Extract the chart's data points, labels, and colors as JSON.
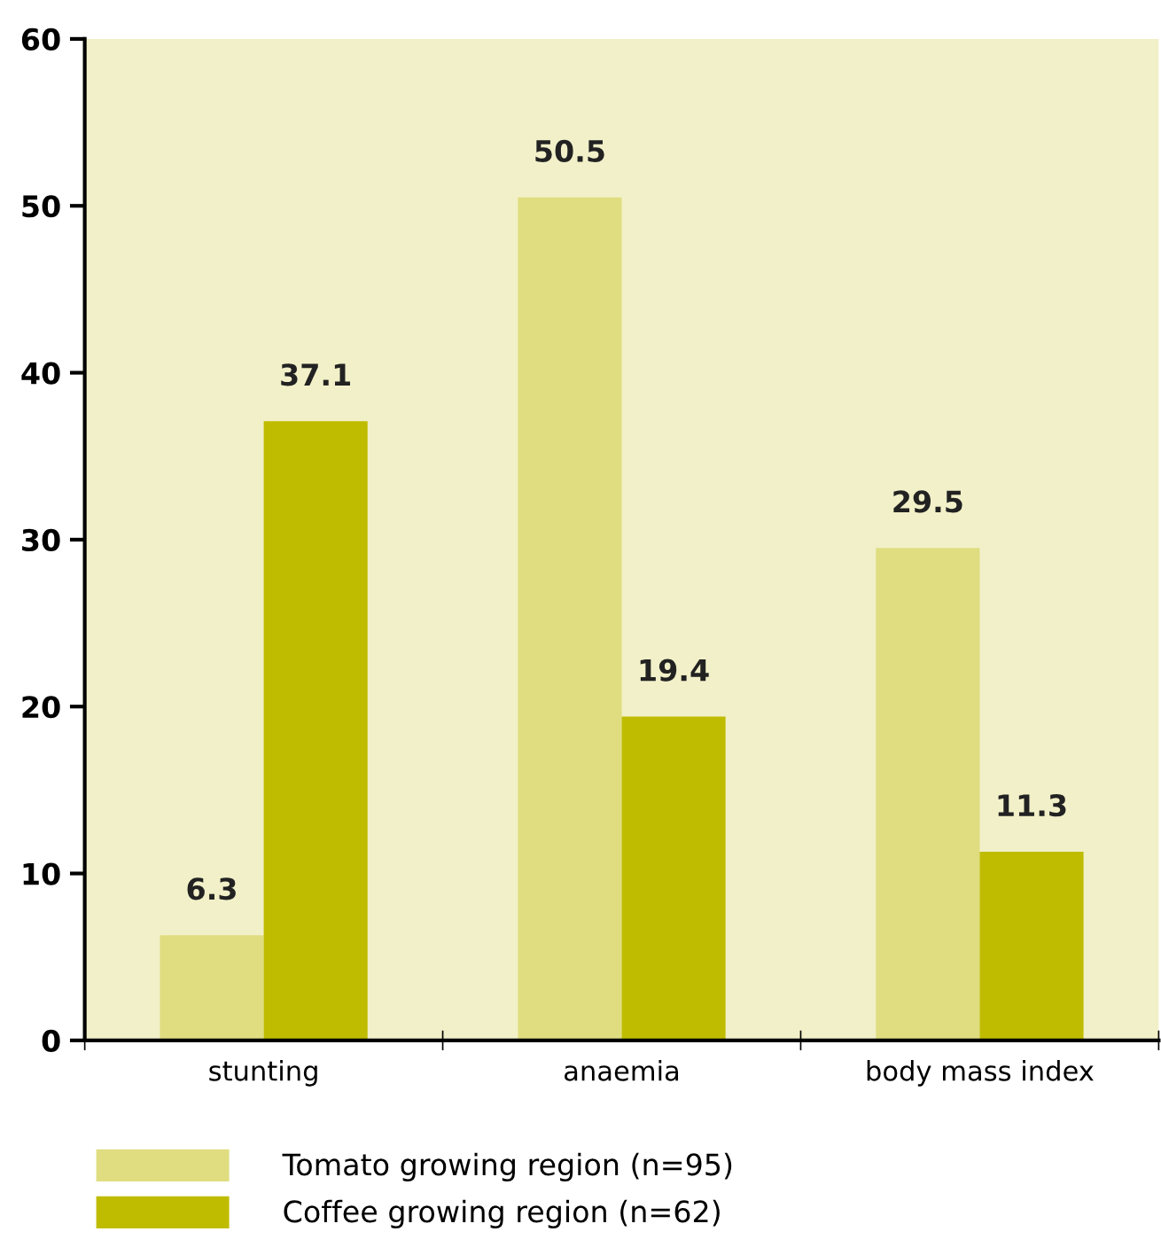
{
  "chart_data": {
    "type": "bar",
    "categories": [
      "stunting",
      "anaemia",
      "body mass index"
    ],
    "series": [
      {
        "name": "Tomato growing region (n=95)",
        "color": "#dfdd80",
        "values": [
          6.3,
          50.5,
          29.5
        ]
      },
      {
        "name": "Coffee growing region (n=62)",
        "color": "#bfbc00",
        "values": [
          37.1,
          19.4,
          11.3
        ]
      }
    ],
    "ylim": [
      0,
      60
    ],
    "yticks": [
      0,
      10,
      20,
      30,
      40,
      50,
      60
    ],
    "data_labels": true,
    "grid": false,
    "legend": "bottom left"
  }
}
